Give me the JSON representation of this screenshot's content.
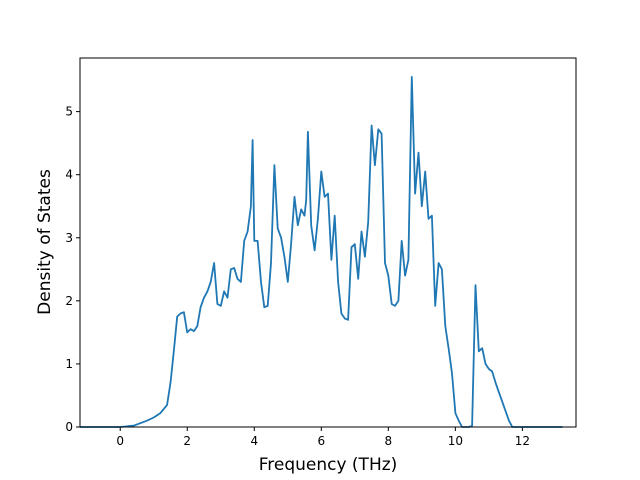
{
  "chart_data": {
    "type": "line",
    "title": "",
    "xlabel": "Frequency (THz)",
    "ylabel": "Density of States",
    "xlim": [
      -1.2,
      13.6
    ],
    "ylim": [
      0,
      5.85
    ],
    "xticks": [
      0,
      2,
      4,
      6,
      8,
      10,
      12
    ],
    "yticks": [
      0,
      1,
      2,
      3,
      4,
      5
    ],
    "grid": false,
    "legend": "none",
    "line_color": "#1f77b4",
    "series": [
      {
        "x": [
          -1.2,
          0.0,
          0.4,
          0.8,
          1.0,
          1.2,
          1.4,
          1.5,
          1.6,
          1.7,
          1.8,
          1.9,
          2.0,
          2.1,
          2.2,
          2.3,
          2.4,
          2.5,
          2.6,
          2.7,
          2.8,
          2.9,
          3.0,
          3.1,
          3.2,
          3.3,
          3.4,
          3.5,
          3.6,
          3.7,
          3.8,
          3.9,
          3.95,
          4.0,
          4.1,
          4.2,
          4.3,
          4.4,
          4.5,
          4.6,
          4.7,
          4.8,
          4.9,
          5.0,
          5.1,
          5.2,
          5.3,
          5.4,
          5.5,
          5.55,
          5.6,
          5.7,
          5.8,
          5.9,
          6.0,
          6.1,
          6.2,
          6.3,
          6.4,
          6.5,
          6.6,
          6.7,
          6.8,
          6.9,
          7.0,
          7.1,
          7.2,
          7.3,
          7.4,
          7.5,
          7.6,
          7.7,
          7.8,
          7.9,
          8.0,
          8.1,
          8.2,
          8.3,
          8.4,
          8.5,
          8.6,
          8.7,
          8.8,
          8.9,
          9.0,
          9.1,
          9.2,
          9.3,
          9.4,
          9.5,
          9.6,
          9.7,
          9.8,
          9.9,
          10.0,
          10.1,
          10.2,
          10.4,
          10.5,
          10.6,
          10.7,
          10.8,
          10.9,
          11.0,
          11.1,
          11.2,
          11.3,
          11.4,
          11.5,
          11.6,
          11.7,
          12.0,
          13.2
        ],
        "y": [
          0,
          0,
          0.02,
          0.1,
          0.15,
          0.22,
          0.35,
          0.7,
          1.2,
          1.75,
          1.8,
          1.82,
          1.5,
          1.55,
          1.52,
          1.6,
          1.9,
          2.05,
          2.15,
          2.3,
          2.6,
          1.95,
          1.92,
          2.15,
          2.05,
          2.5,
          2.52,
          2.35,
          2.3,
          2.95,
          3.1,
          3.5,
          4.55,
          2.95,
          2.95,
          2.3,
          1.9,
          1.92,
          2.6,
          4.15,
          3.15,
          3.0,
          2.7,
          2.3,
          2.9,
          3.65,
          3.2,
          3.45,
          3.35,
          3.6,
          4.68,
          3.2,
          2.8,
          3.3,
          4.05,
          3.65,
          3.7,
          2.65,
          3.35,
          2.3,
          1.8,
          1.72,
          1.7,
          2.85,
          2.9,
          2.35,
          3.1,
          2.7,
          3.25,
          4.78,
          4.15,
          4.72,
          4.65,
          2.6,
          2.4,
          1.95,
          1.92,
          2.0,
          2.95,
          2.4,
          2.65,
          5.55,
          3.7,
          4.35,
          3.5,
          4.05,
          3.3,
          3.35,
          1.92,
          2.6,
          2.5,
          1.6,
          1.25,
          0.85,
          0.22,
          0.1,
          0,
          0,
          0.02,
          2.25,
          1.2,
          1.25,
          1.0,
          0.92,
          0.88,
          0.7,
          0.55,
          0.4,
          0.25,
          0.1,
          0,
          0,
          0
        ]
      }
    ]
  }
}
